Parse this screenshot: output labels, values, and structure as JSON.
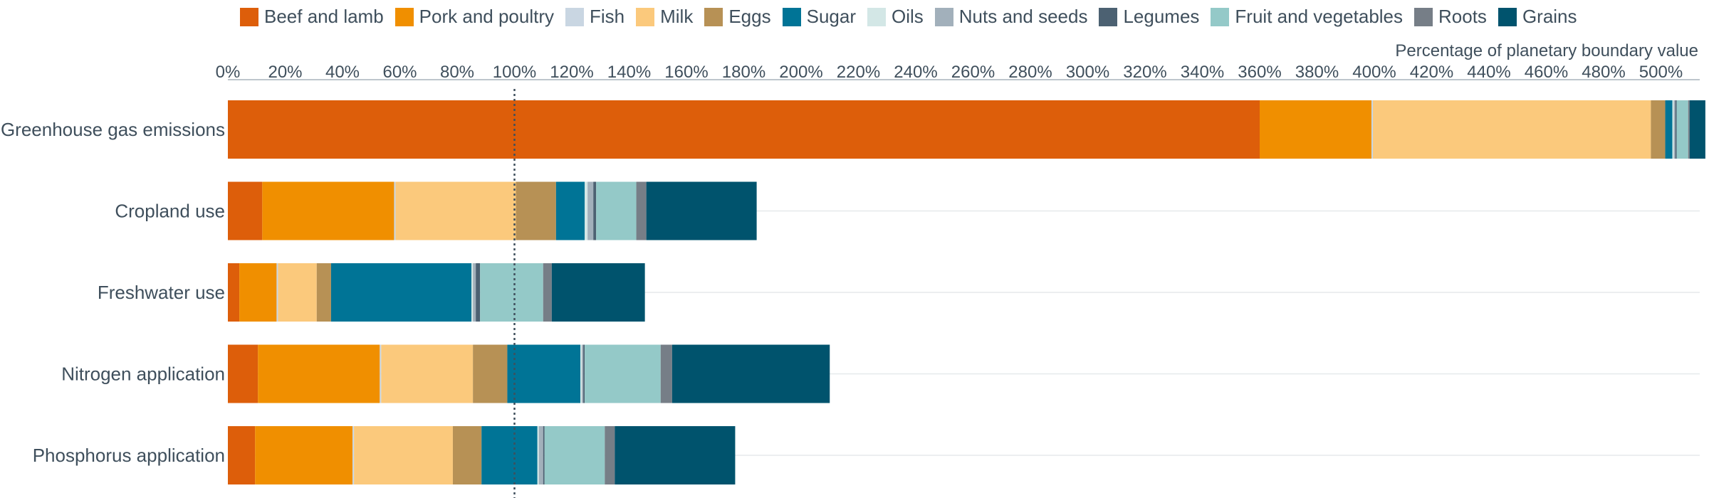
{
  "chart_data": {
    "type": "bar",
    "orientation": "horizontal",
    "stacked": true,
    "xlabel": "Percentage of planetary boundary value",
    "x_ticks": [
      "0%",
      "20%",
      "40%",
      "60%",
      "80%",
      "100%",
      "120%",
      "140%",
      "160%",
      "180%",
      "200%",
      "220%",
      "240%",
      "260%",
      "280%",
      "300%",
      "320%",
      "340%",
      "360%",
      "380%",
      "400%",
      "420%",
      "440%",
      "460%",
      "480%",
      "500%"
    ],
    "xlim": [
      0,
      514
    ],
    "reference_line": 100,
    "legend_position": "top",
    "grid": true,
    "categories": [
      "Greenhouse gas emissions",
      "Cropland use",
      "Freshwater use",
      "Nitrogen application",
      "Phosphorus application"
    ],
    "series": [
      {
        "name": "Beef and lamb",
        "color": "#dd5e0a",
        "values": [
          360,
          12,
          4,
          10.5,
          9.5
        ]
      },
      {
        "name": "Pork and poultry",
        "color": "#f08f00",
        "values": [
          39,
          46,
          13,
          42.5,
          34
        ]
      },
      {
        "name": "Fish",
        "color": "#c9d6e2",
        "values": [
          0.5,
          0.5,
          0.5,
          0.5,
          0.5
        ]
      },
      {
        "name": "Milk",
        "color": "#fbc97c",
        "values": [
          97,
          42,
          13.5,
          32,
          34.5
        ]
      },
      {
        "name": "Eggs",
        "color": "#b79155",
        "values": [
          5,
          14,
          5,
          12,
          10
        ]
      },
      {
        "name": "Sugar",
        "color": "#007496",
        "values": [
          2.5,
          10,
          49,
          25.5,
          19.5
        ]
      },
      {
        "name": "Oils",
        "color": "#d3e7e6",
        "values": [
          0.5,
          1,
          0.5,
          0.5,
          0.5
        ]
      },
      {
        "name": "Nuts and seeds",
        "color": "#a2b0bb",
        "values": [
          0.5,
          2,
          1,
          0.5,
          1.5
        ]
      },
      {
        "name": "Legumes",
        "color": "#4c6172",
        "values": [
          0.5,
          1,
          1.5,
          0.5,
          0.5
        ]
      },
      {
        "name": "Fruit and vegetables",
        "color": "#94c9c8",
        "values": [
          4,
          14,
          22,
          26.5,
          21
        ]
      },
      {
        "name": "Roots",
        "color": "#767e87",
        "values": [
          0.5,
          3.5,
          3,
          4,
          3.5
        ]
      },
      {
        "name": "Grains",
        "color": "#00536d",
        "values": [
          5.5,
          38.5,
          32.5,
          55,
          42
        ]
      }
    ]
  }
}
